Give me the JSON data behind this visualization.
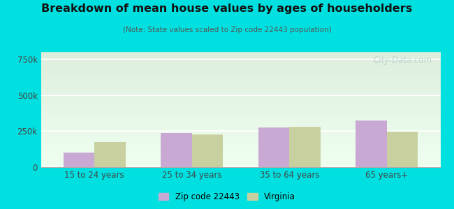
{
  "title": "Breakdown of mean house values by ages of householders",
  "subtitle": "(Note: State values scaled to Zip code 22443 population)",
  "categories": [
    "15 to 24 years",
    "25 to 34 years",
    "35 to 64 years",
    "65 years+"
  ],
  "zip_values": [
    100000,
    240000,
    275000,
    325000
  ],
  "virginia_values": [
    175000,
    230000,
    280000,
    245000
  ],
  "zip_color": "#c9a8d4",
  "virginia_color": "#c8d0a0",
  "zip_label": "Zip code 22443",
  "virginia_label": "Virginia",
  "ylim": [
    0,
    800000
  ],
  "yticks": [
    0,
    250000,
    500000,
    750000
  ],
  "ytick_labels": [
    "0",
    "250k",
    "500k",
    "750k"
  ],
  "bg_top_color": "#ddeedd",
  "bg_bottom_color": "#eefff0",
  "outer_bg": "#00e0e0",
  "bar_width": 0.32,
  "watermark": "City-Data.com"
}
